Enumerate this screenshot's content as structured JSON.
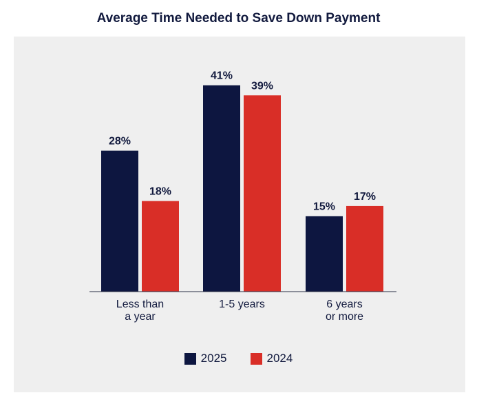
{
  "chart_data": {
    "type": "bar",
    "title": "Average Time Needed to Save Down Payment",
    "categories": [
      [
        "Less than",
        "a year"
      ],
      [
        "1-5 years"
      ],
      [
        "6 years",
        "or more"
      ]
    ],
    "series": [
      {
        "name": "2025",
        "values": [
          28,
          41,
          15
        ],
        "color": "#0d1640"
      },
      {
        "name": "2024",
        "values": [
          18,
          39,
          17
        ],
        "color": "#d92e27"
      }
    ],
    "value_suffix": "%",
    "ylim": [
      0,
      45
    ],
    "grid": false,
    "legend": "bottom-center"
  }
}
